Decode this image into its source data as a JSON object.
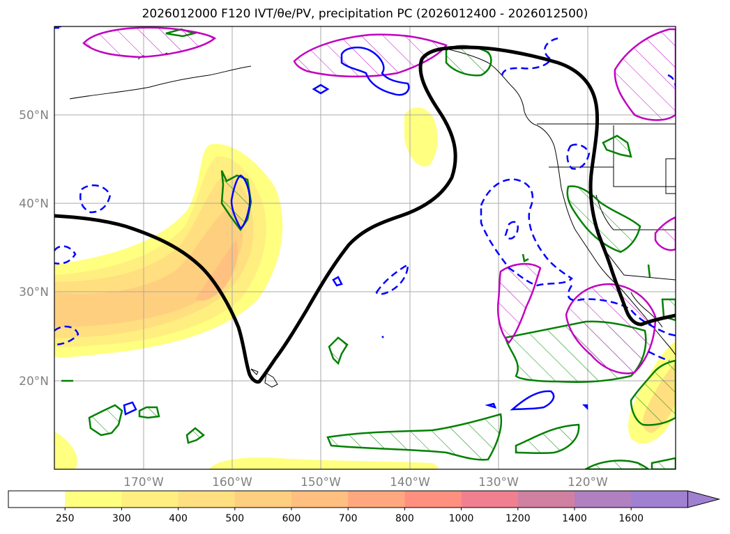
{
  "title": "2026012000 F120 IVT/θe/PV, precipitation PC (2026012400 - 2026012500)",
  "map": {
    "lat_labels": [
      "50°N",
      "40°N",
      "30°N",
      "20°N"
    ],
    "lon_labels": [
      "170°W",
      "160°W",
      "150°W",
      "140°W",
      "130°W",
      "120°W"
    ]
  },
  "colorbar": {
    "ticks": [
      "250",
      "300",
      "400",
      "500",
      "600",
      "700",
      "800",
      "1000",
      "1200",
      "1400",
      "1600"
    ],
    "colors": [
      "#ffffff",
      "#ffff80",
      "#ffef80",
      "#ffdf80",
      "#ffcf80",
      "#ffbf80",
      "#ffa880",
      "#ff9080",
      "#f08090",
      "#d080a0",
      "#b080c0",
      "#a080d0"
    ],
    "extend": "max"
  },
  "legend_colors": {
    "theta_e_contour": "#000000",
    "pv_solid": "#0000ff",
    "pv_dashed": "#0000ff",
    "precip_green": "#008000",
    "precip_magenta": "#c000c0"
  }
}
